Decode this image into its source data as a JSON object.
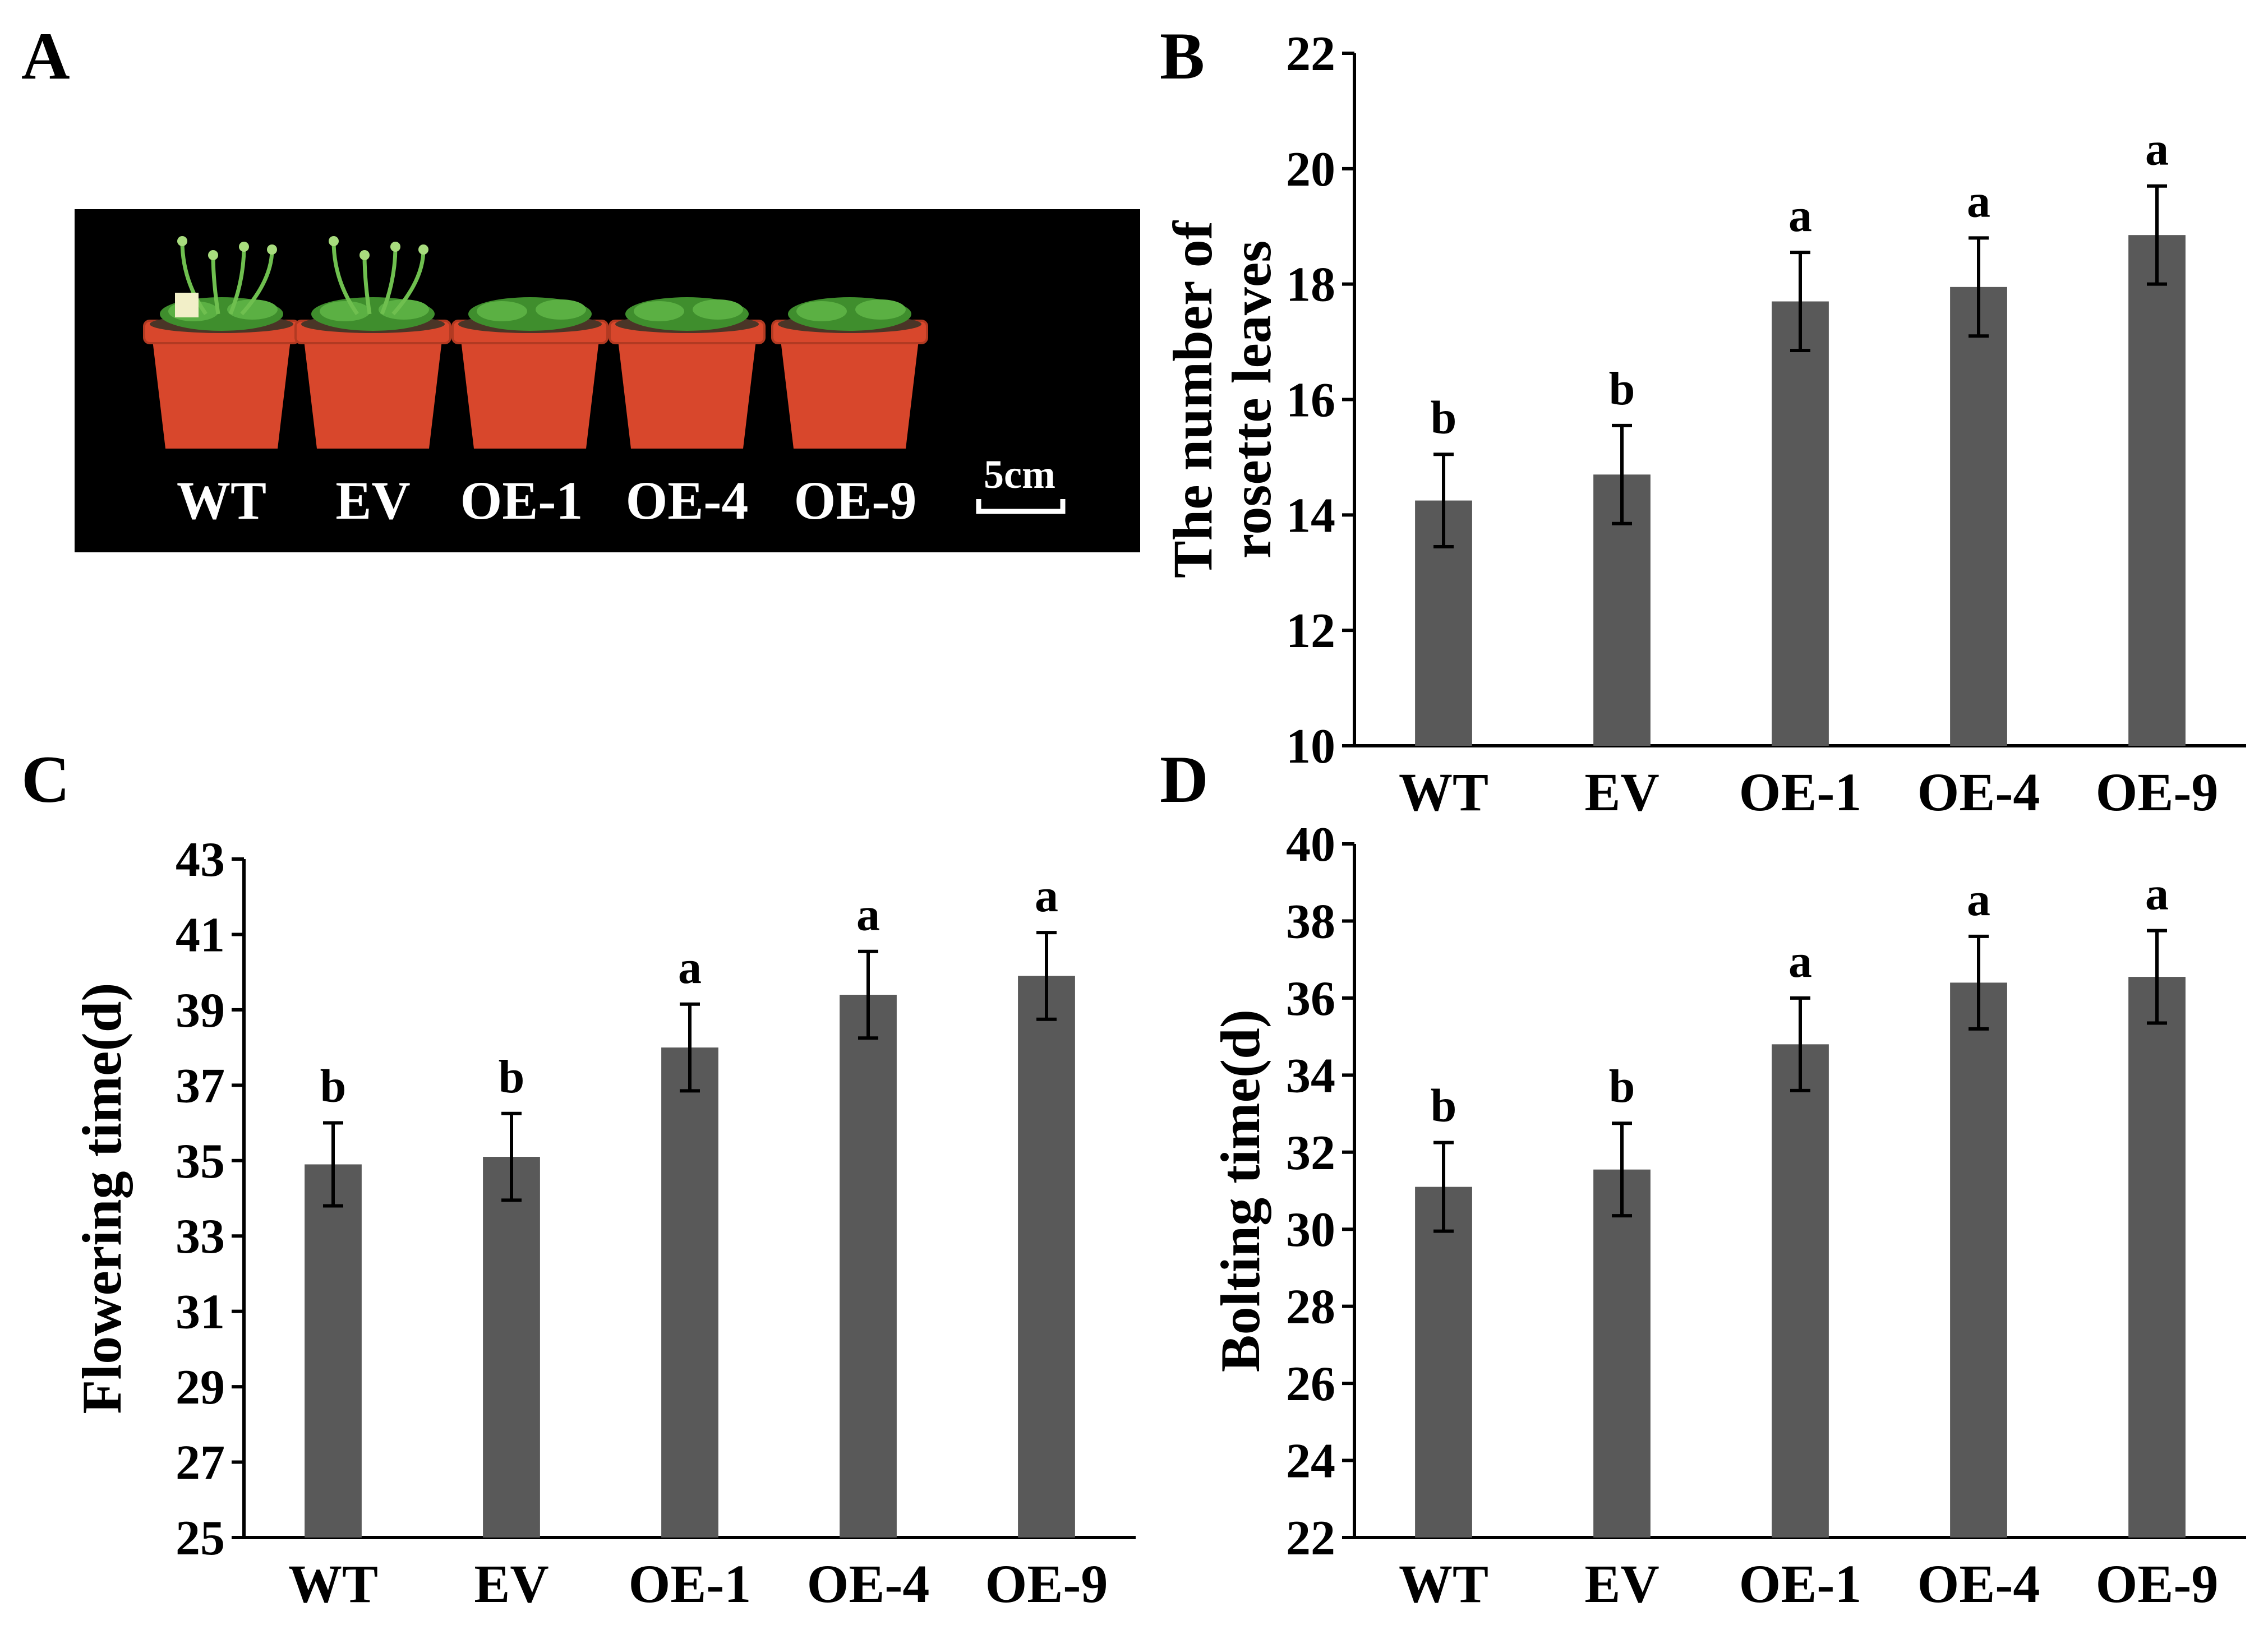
{
  "figure": {
    "panel_labels": [
      "A",
      "B",
      "C",
      "D"
    ],
    "colors": {
      "bar": "#595959",
      "photo_background": "#000000",
      "pot": "#d8472c",
      "axis": "#000000"
    }
  },
  "panel_a": {
    "labels": [
      "WT",
      "EV",
      "OE-1",
      "OE-4",
      "OE-9"
    ],
    "scale_bar": "5cm"
  },
  "chart_data": [
    {
      "panel": "B",
      "type": "bar",
      "categories": [
        "WT",
        "EV",
        "OE-1",
        "OE-4",
        "OE-9"
      ],
      "values": [
        14.25,
        14.7,
        17.7,
        17.95,
        18.85
      ],
      "errors": [
        0.8,
        0.85,
        0.85,
        0.85,
        0.85
      ],
      "significance": [
        "b",
        "b",
        "a",
        "a",
        "a"
      ],
      "ylabel_lines": [
        "The number of",
        "rosette leaves"
      ],
      "ylim": [
        10,
        22
      ],
      "yticks": [
        "10",
        "12",
        "14",
        "16",
        "18",
        "20",
        "22"
      ],
      "grid": false
    },
    {
      "panel": "C",
      "type": "bar",
      "categories": [
        "WT",
        "EV",
        "OE-1",
        "OE-4",
        "OE-9"
      ],
      "values": [
        34.9,
        35.1,
        38.0,
        39.4,
        39.9
      ],
      "errors": [
        1.1,
        1.15,
        1.15,
        1.15,
        1.15
      ],
      "significance": [
        "b",
        "b",
        "a",
        "a",
        "a"
      ],
      "ylabel_lines": [
        "Flowering time(d)"
      ],
      "ylim": [
        25,
        43
      ],
      "yticks": [
        "25",
        "27",
        "29",
        "31",
        "33",
        "35",
        "37",
        "39",
        "41",
        "43"
      ],
      "grid": false
    },
    {
      "panel": "D",
      "type": "bar",
      "categories": [
        "WT",
        "EV",
        "OE-1",
        "OE-4",
        "OE-9"
      ],
      "values": [
        31.1,
        31.55,
        34.8,
        36.4,
        36.55
      ],
      "errors": [
        1.15,
        1.2,
        1.2,
        1.2,
        1.2
      ],
      "significance": [
        "b",
        "b",
        "a",
        "a",
        "a"
      ],
      "ylabel_lines": [
        "Bolting time(d)"
      ],
      "ylim": [
        22,
        40
      ],
      "yticks": [
        "22",
        "24",
        "26",
        "28",
        "30",
        "32",
        "34",
        "36",
        "38",
        "40"
      ],
      "grid": false
    }
  ]
}
